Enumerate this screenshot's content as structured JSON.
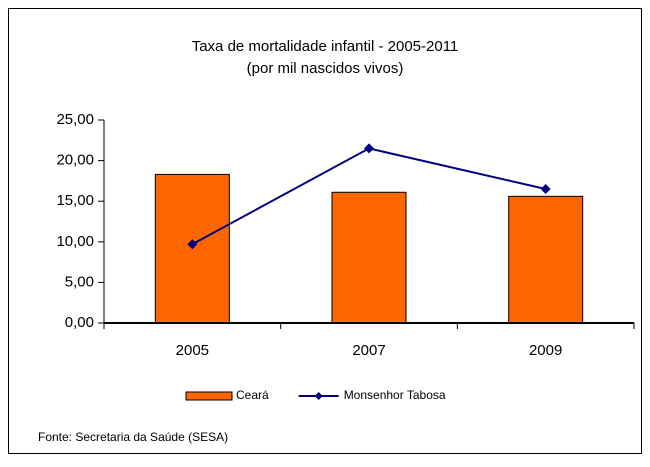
{
  "chart_data": {
    "type": "bar",
    "title": "Taxa de mortalidade infantil - 2005-2011",
    "subtitle": "(por mil nascidos vivos)",
    "categories": [
      "2005",
      "2007",
      "2009"
    ],
    "series": [
      {
        "name": "Ceará",
        "type": "bar",
        "color": "#ff6600",
        "values": [
          18.3,
          16.1,
          15.6
        ]
      },
      {
        "name": "Monsenhor Tabosa",
        "type": "line",
        "color": "#000080",
        "values": [
          9.7,
          21.5,
          16.5
        ]
      }
    ],
    "ylim": [
      0,
      25
    ],
    "yticks": [
      {
        "value": 0,
        "label": "0,00"
      },
      {
        "value": 5,
        "label": "5,00"
      },
      {
        "value": 10,
        "label": "10,00"
      },
      {
        "value": 15,
        "label": "15,00"
      },
      {
        "value": 20,
        "label": "20,00"
      },
      {
        "value": 25,
        "label": "25,00"
      }
    ],
    "grid": false,
    "legend": "bottom",
    "source": "Fonte: Secretaria da Saúde (SESA)"
  }
}
